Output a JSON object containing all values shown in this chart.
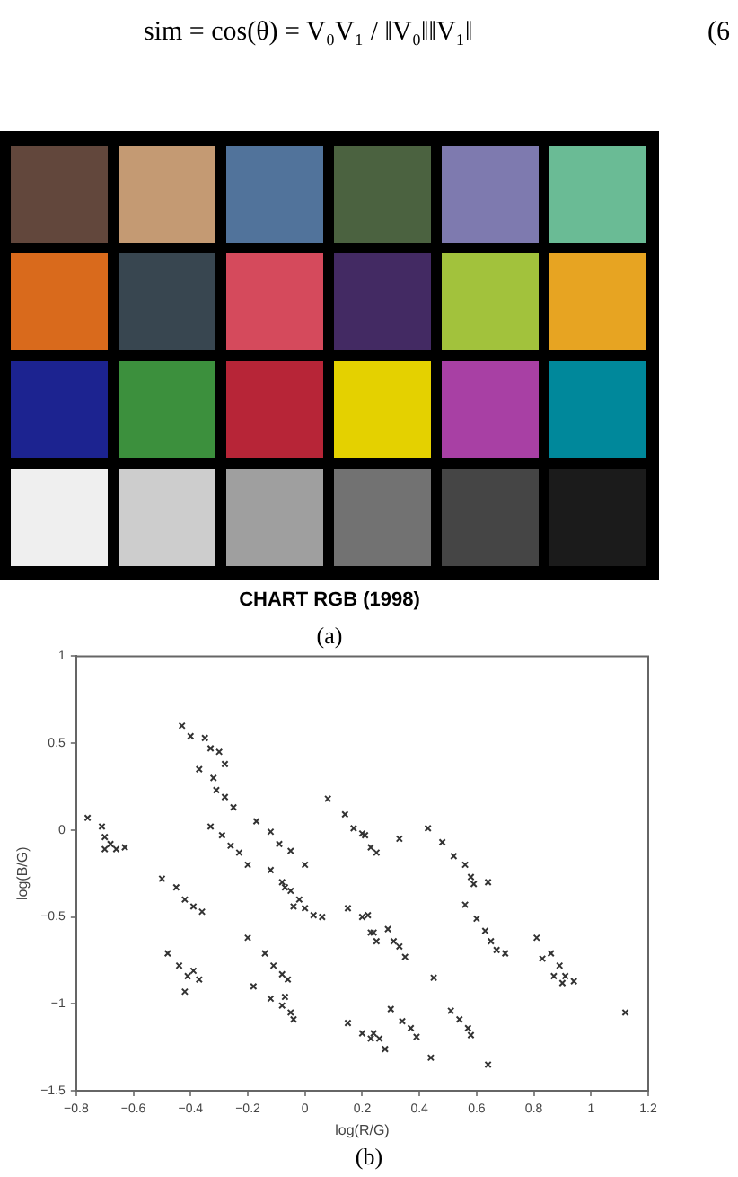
{
  "chart_data": {
    "type": "scatter",
    "xlabel": "log(R/G)",
    "ylabel": "log(B/G)",
    "annotations": [
      "sim = cos(θ) = V₀V₁ / ‖V₀‖‖V₁‖",
      "(6",
      "CHART RGB (1998)",
      "(a)",
      "(b)"
    ],
    "marker": "cross",
    "grid": false,
    "xlim": [
      -0.8,
      1.2
    ],
    "xticks": [
      -0.8,
      -0.6,
      -0.4,
      -0.2,
      0,
      0.2,
      0.4,
      0.6,
      0.8,
      1,
      1.2
    ],
    "ylim": [
      -1.5,
      1
    ],
    "yticks": [
      -1.5,
      -1,
      -0.5,
      0,
      0.5,
      1
    ],
    "series": [
      {
        "color": "#333333",
        "x": [
          -0.43,
          -0.4,
          -0.35,
          -0.33,
          -0.3,
          -0.37,
          -0.28,
          -0.32,
          -0.31,
          -0.28,
          -0.25,
          -0.33,
          -0.29,
          -0.26,
          -0.23,
          -0.2,
          -0.17,
          -0.12,
          -0.09,
          -0.05,
          0.0,
          -0.76,
          -0.71,
          -0.7,
          -0.68,
          -0.66,
          -0.7,
          -0.63,
          -0.12,
          -0.08,
          -0.05,
          -0.02,
          0.0,
          0.03,
          0.06,
          -0.04,
          -0.07,
          -0.5,
          -0.45,
          -0.42,
          -0.39,
          -0.36,
          -0.48,
          -0.44,
          -0.41,
          -0.37,
          -0.42,
          -0.39,
          -0.2,
          -0.14,
          -0.11,
          -0.08,
          -0.06,
          -0.18,
          -0.12,
          -0.08,
          -0.05,
          -0.04,
          -0.07,
          0.15,
          0.2,
          0.23,
          0.08,
          0.14,
          0.17,
          0.2,
          0.15,
          0.2,
          0.22,
          0.23,
          0.21,
          0.23,
          0.25,
          0.33,
          0.43,
          0.48,
          0.52,
          0.56,
          0.58,
          0.59,
          0.64,
          0.56,
          0.6,
          0.63,
          0.65,
          0.67,
          0.7,
          0.81,
          0.83,
          0.86,
          0.89,
          0.87,
          0.91,
          0.94,
          0.9,
          0.45,
          0.24,
          0.29,
          0.31,
          0.33,
          0.35,
          0.25,
          0.3,
          0.34,
          0.37,
          0.39,
          0.51,
          0.54,
          0.57,
          0.58,
          0.44,
          0.64,
          1.12,
          0.24,
          0.26,
          0.28
        ],
        "values": [
          0.6,
          0.54,
          0.53,
          0.47,
          0.45,
          0.35,
          0.38,
          0.3,
          0.23,
          0.19,
          0.13,
          0.02,
          -0.03,
          -0.09,
          -0.13,
          -0.2,
          0.05,
          -0.01,
          -0.08,
          -0.12,
          -0.2,
          0.07,
          0.02,
          -0.04,
          -0.08,
          -0.11,
          -0.11,
          -0.1,
          -0.23,
          -0.3,
          -0.35,
          -0.4,
          -0.45,
          -0.49,
          -0.5,
          -0.44,
          -0.33,
          -0.28,
          -0.33,
          -0.4,
          -0.44,
          -0.47,
          -0.71,
          -0.78,
          -0.84,
          -0.86,
          -0.93,
          -0.81,
          -0.62,
          -0.71,
          -0.78,
          -0.83,
          -0.86,
          -0.9,
          -0.97,
          -1.01,
          -1.05,
          -1.09,
          -0.96,
          -1.11,
          -1.17,
          -1.2,
          0.18,
          0.09,
          0.01,
          -0.02,
          -0.45,
          -0.5,
          -0.49,
          -0.59,
          -0.03,
          -0.1,
          -0.13,
          -0.05,
          0.01,
          -0.07,
          -0.15,
          -0.2,
          -0.27,
          -0.31,
          -0.3,
          -0.43,
          -0.51,
          -0.58,
          -0.64,
          -0.69,
          -0.71,
          -0.62,
          -0.74,
          -0.71,
          -0.78,
          -0.84,
          -0.84,
          -0.87,
          -0.88,
          -0.85,
          -0.59,
          -0.57,
          -0.64,
          -0.67,
          -0.73,
          -0.64,
          -1.03,
          -1.1,
          -1.14,
          -1.19,
          -1.04,
          -1.09,
          -1.14,
          -1.18,
          -1.31,
          -1.35,
          -1.05,
          -1.17,
          -1.2,
          -1.26
        ]
      }
    ]
  }
}
